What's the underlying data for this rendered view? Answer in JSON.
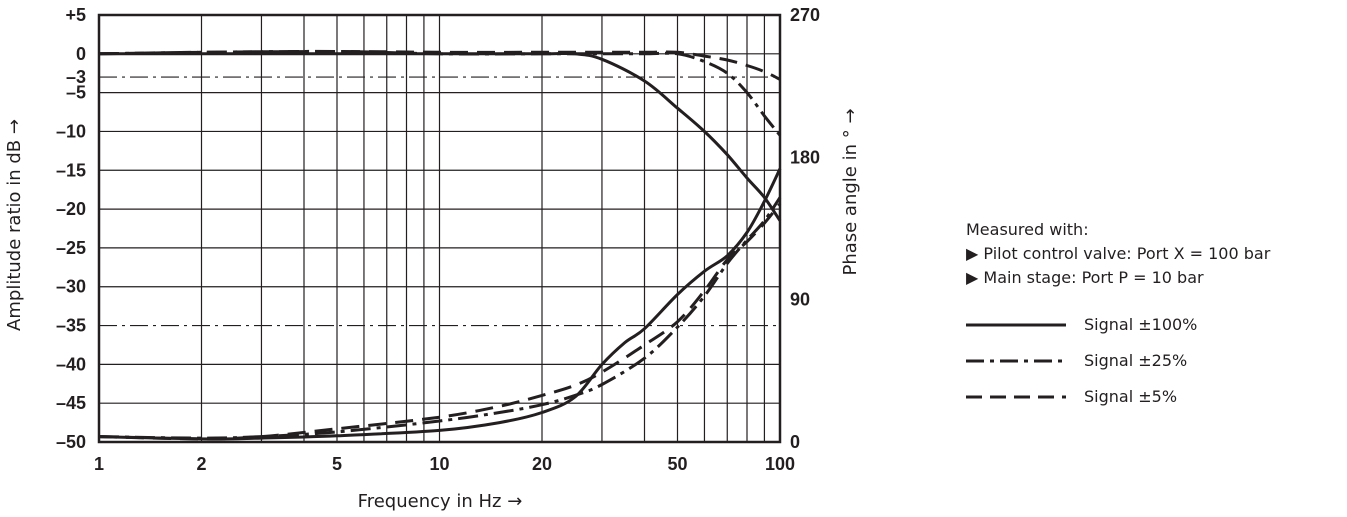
{
  "chart_data": {
    "type": "line",
    "xlabel": "Frequency in Hz →",
    "ylabel": "Amplitude ratio in dB →",
    "y2label": "Phase angle in ° →",
    "xscale": "log",
    "xlim": [
      1,
      100
    ],
    "ylim": [
      -50,
      5
    ],
    "y2lim": [
      0,
      270
    ],
    "x_ticks": [
      1,
      2,
      5,
      10,
      20,
      50,
      100
    ],
    "x_tick_labels": [
      "1",
      "2",
      "5",
      "10",
      "20",
      "50",
      "100"
    ],
    "y_ticks": [
      5,
      0,
      -3,
      -5,
      -10,
      -15,
      -20,
      -25,
      -30,
      -35,
      -40,
      -45,
      -50
    ],
    "y_tick_labels": [
      "+5",
      "0",
      "–3",
      "–5",
      "–10",
      "–15",
      "–20",
      "–25",
      "–30",
      "–35",
      "–40",
      "–45",
      "–50"
    ],
    "y2_ticks": [
      270,
      180,
      90,
      0
    ],
    "y2_tick_labels": [
      "270",
      "180",
      "90",
      "0"
    ],
    "reference_lines_db": [
      -3,
      -35
    ],
    "grid": true,
    "legend_position": "right",
    "series": [
      {
        "name": "Signal ±100%",
        "style": "solid",
        "quantity": "amplitude",
        "x": [
          1,
          2,
          5,
          10,
          20,
          25,
          30,
          40,
          50,
          60,
          70,
          80,
          90,
          100
        ],
        "y": [
          0,
          0,
          0,
          0,
          0,
          0,
          -0.7,
          -3.5,
          -7,
          -10,
          -13,
          -16,
          -18.5,
          -21.5
        ]
      },
      {
        "name": "Signal ±100%",
        "style": "solid",
        "quantity": "phase",
        "x": [
          1,
          2,
          3,
          5,
          10,
          15,
          20,
          25,
          30,
          35,
          40,
          50,
          60,
          70,
          80,
          90,
          100
        ],
        "y": [
          -49.3,
          -49.6,
          -49.5,
          -49.2,
          -48.5,
          -47.5,
          -46.2,
          -44.2,
          -40.0,
          -37.2,
          -35.4,
          -31.0,
          -28.0,
          -26.0,
          -23.0,
          -19.0,
          -14.8
        ]
      },
      {
        "name": "Signal ±25%",
        "style": "dashdot",
        "quantity": "amplitude",
        "x": [
          1,
          2,
          5,
          10,
          20,
          30,
          40,
          50,
          60,
          70,
          80,
          90,
          100
        ],
        "y": [
          0,
          0.2,
          0.3,
          0,
          0,
          0,
          0,
          0,
          -1,
          -2.5,
          -5,
          -8,
          -10.5
        ]
      },
      {
        "name": "Signal ±25%",
        "style": "dashdot",
        "quantity": "phase",
        "x": [
          1,
          2,
          3,
          5,
          10,
          15,
          20,
          25,
          30,
          40,
          50,
          60,
          70,
          80,
          90,
          100
        ],
        "y": [
          -49.3,
          -49.5,
          -49.3,
          -48.7,
          -47.3,
          -46.2,
          -45.2,
          -44.0,
          -42.6,
          -39.2,
          -35.2,
          -31.2,
          -27.0,
          -24.0,
          -21.5,
          -18.5
        ]
      },
      {
        "name": "Signal ±5%",
        "style": "dashed",
        "quantity": "amplitude",
        "x": [
          1,
          2,
          5,
          10,
          20,
          30,
          40,
          50,
          60,
          70,
          80,
          90,
          100
        ],
        "y": [
          0,
          0.2,
          0.3,
          0.2,
          0.2,
          0.2,
          0.2,
          0.2,
          -0.3,
          -0.8,
          -1.5,
          -2.3,
          -3.3
        ]
      },
      {
        "name": "Signal ±5%",
        "style": "dashed",
        "quantity": "phase",
        "x": [
          1,
          2,
          3,
          5,
          10,
          15,
          20,
          25,
          30,
          40,
          50,
          60,
          70,
          80,
          90,
          100
        ],
        "y": [
          -49.3,
          -49.6,
          -49.3,
          -48.3,
          -46.8,
          -45.4,
          -44.0,
          -42.7,
          -41.0,
          -37.5,
          -34.5,
          -30.5,
          -26.5,
          -24.2,
          -21.8,
          -19.3
        ]
      }
    ]
  },
  "notes": {
    "title": "Measured with:",
    "items": [
      "▶ Pilot control valve: Port X = 100 bar",
      "▶ Main stage: Port P = 10 bar"
    ]
  },
  "legend": {
    "entries": [
      {
        "label": "Signal ±100%",
        "style": "solid"
      },
      {
        "label": "Signal ±25%",
        "style": "dashdot"
      },
      {
        "label": "Signal ±5%",
        "style": "dashed"
      }
    ]
  }
}
